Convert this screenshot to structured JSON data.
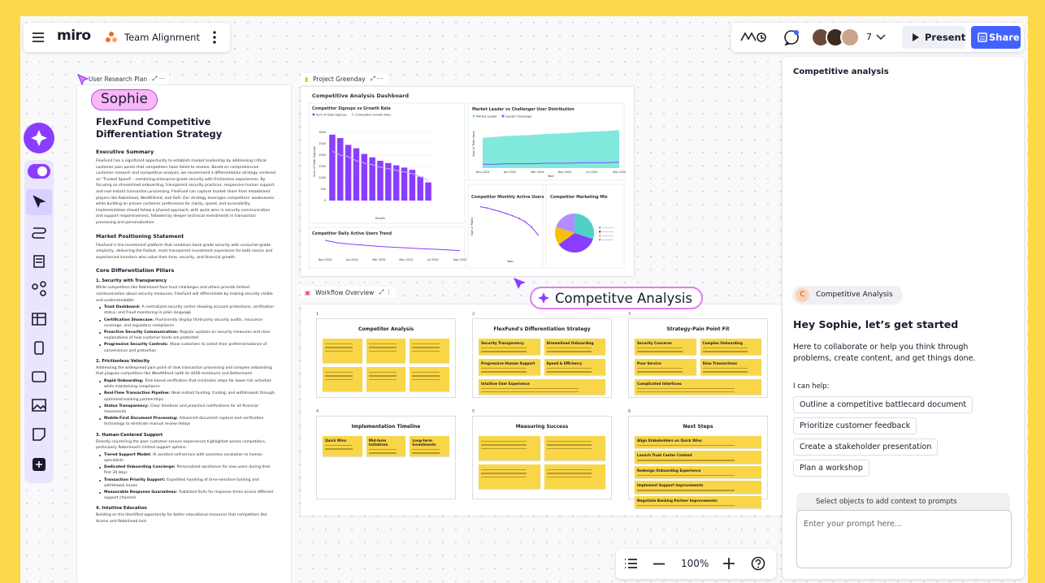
{
  "topbar": {
    "logo": "miro",
    "board_name": "Team Alignment",
    "collaborator_count": "7",
    "present": "Present",
    "share": "Share"
  },
  "canvas_labels": {
    "doc_tab": "User Research Plan",
    "cursor_sophie": "Sophie",
    "dashboard_tab": "Project Greenday",
    "workflow_tab": "Workflow Overview",
    "ai_tag": "Competitve Analysis"
  },
  "document": {
    "title": "FlexFund Competitive Differentiation Strategy",
    "blocks": [
      {
        "type": "h",
        "text": "Executive Summary"
      },
      {
        "type": "p",
        "text": "FlexFund has a significant opportunity to establish market leadership by addressing critical customer pain points that competitors have failed to resolve. Based on comprehensive customer research and competitive analysis, we recommend a differentiation strategy centered on \"Trusted Speed\" - combining enterprise-grade security with frictionless experiences. By focusing on streamlined onboarding, transparent security practices, responsive human support, and real-instant transaction processing, FlexFund can capture market share from established players like Robinhood, Wealthfront, and SoFi. Our strategy leverages competitors' weaknesses while building on proven customer preferences for clarity, speed, and accessibility. Implementation should follow a phased approach, with quick wins in security communication and support responsiveness, followed by deeper technical investments in transaction processing and personalization."
      },
      {
        "type": "h",
        "text": "Market Positioning Statement"
      },
      {
        "type": "p",
        "text": "FlexFund is the investment platform that combines bank-grade security with consumer-grade simplicity, delivering the fastest, most transparent investment experience for both novice and experienced investors who value their time, security, and financial growth."
      },
      {
        "type": "h",
        "text": "Core Differentiation Pillars"
      },
      {
        "type": "s",
        "text": "1. Security with Transparency"
      },
      {
        "type": "p",
        "text": "While competitors like Robinhood face trust challenges and others provide limited communication about security measures, FlexFund will differentiate by making security visible and understandable:"
      },
      {
        "type": "li",
        "lead": "Trust Dashboard:",
        "text": "A centralized security center showing account protections, verification status, and fraud monitoring in plain language"
      },
      {
        "type": "li",
        "lead": "Certification Showcase:",
        "text": "Prominently display third-party security audits, insurance coverage, and regulatory compliance"
      },
      {
        "type": "li",
        "lead": "Proactive Security Communication:",
        "text": "Regular updates on security measures and clear explanations of how customer funds are protected"
      },
      {
        "type": "li",
        "lead": "Progressive Security Controls:",
        "text": "Allow customers to select their preferred balance of convenience and protection"
      },
      {
        "type": "s",
        "text": "2. Frictionless Velocity"
      },
      {
        "type": "p",
        "text": "Addressing the widespread pain point of slow transaction processing and complex onboarding that plagues competitors like Wealthfront (with its $500 minimum) and Betterment:"
      },
      {
        "type": "li",
        "lead": "Rapid Onboarding:",
        "text": "Risk-based verification that minimizes steps for lower-risk activities while maintaining compliance"
      },
      {
        "type": "li",
        "lead": "Real-Time Transaction Pipeline:",
        "text": "Near-instant funding, trading, and withdrawals through optimized banking partnerships"
      },
      {
        "type": "li",
        "lead": "Status Transparency:",
        "text": "Clear timelines and proactive notifications for all financial movements"
      },
      {
        "type": "li",
        "lead": "Mobile-First Document Processing:",
        "text": "Advanced document capture and verification technology to eliminate manual review delays"
      },
      {
        "type": "s",
        "text": "3. Human-Centered Support"
      },
      {
        "type": "p",
        "text": "Directly countering the poor customer service experiences highlighted across competitors, particularly Robinhood's limited support options:"
      },
      {
        "type": "li",
        "lead": "Tiered Support Model:",
        "text": "AI assisted self-service with seamless escalation to human specialists"
      },
      {
        "type": "li",
        "lead": "Dedicated Onboarding Concierge:",
        "text": "Personalized assistance for new users during their first 30 days"
      },
      {
        "type": "li",
        "lead": "Transaction Priority Support:",
        "text": "Expedited handling of time-sensitive funding and withdrawal issues"
      },
      {
        "type": "li",
        "lead": "Measurable Response Guarantees:",
        "text": "Published SLAs for response times across different support channels"
      },
      {
        "type": "s",
        "text": "4. Intuitive Education"
      },
      {
        "type": "p",
        "text": "Building on the identified opportunity for better educational resources that competitors like Acorns and Robinhood lack"
      }
    ]
  },
  "dashboard": {
    "title": "Competitive Analysis Dashboard",
    "signups": {
      "type": "bar",
      "title": "Competitor Signups vs Growth Rate",
      "legend": [
        "Sum of Total Signups",
        "Competitor Growth Rate"
      ],
      "colors": [
        "#8b3dff",
        "#c9b3ff"
      ],
      "y_label": "Sum of Total Signups",
      "x_label": "Month",
      "values": [
        2900,
        2750,
        2450,
        2300,
        2050,
        1900,
        1750,
        1650,
        1550,
        1450,
        1350,
        1050,
        800
      ],
      "growth": [
        0.62,
        0.57,
        0.55,
        0.5,
        0.47,
        0.45,
        0.42,
        0.4,
        0.38,
        0.36,
        0.34,
        0.3,
        0.25
      ],
      "ylim": [
        0,
        3500
      ],
      "yticks": [
        0,
        500,
        1000,
        1500,
        2000,
        2500,
        3000
      ],
      "y2lim": [
        0,
        1
      ]
    },
    "distribution": {
      "type": "area",
      "title": "Market Leader vs Challenger User Distribution",
      "legend": [
        "Market Leader",
        "Leader Challenger"
      ],
      "colors": [
        "#62e3d3",
        "#7a4dff"
      ],
      "y_label": "Sum of Total Users",
      "x_label": "Year",
      "x_labels": [
        "Nov 2023",
        "Jan 2024",
        "Mar 2024",
        "May 2024",
        "Jul 2024",
        "Sep 2024"
      ],
      "leader": [
        62,
        64,
        66,
        67,
        68,
        70,
        71,
        72,
        74,
        75,
        76,
        78
      ],
      "challenger": [
        8,
        8,
        9,
        9,
        9,
        10,
        10,
        10,
        11,
        11,
        11,
        12
      ],
      "ylim": [
        0,
        100
      ]
    },
    "dau": {
      "type": "line",
      "title": "Competitor Daily Active Users Trend",
      "color": "#8b3dff",
      "x_labels": [
        "Nov 2023",
        "Jan 2024",
        "Mar 2024",
        "May 2024",
        "Jul 2024",
        "Sep 2024"
      ],
      "values": [
        85,
        70,
        62,
        56,
        50,
        45,
        41,
        37,
        33,
        30,
        26,
        22
      ],
      "ylim": [
        0,
        100
      ]
    },
    "mau": {
      "type": "line",
      "title": "Competitor Monthly Active Users",
      "color": "#8b3dff",
      "x_label": "Year",
      "y_label": "Sum of MAUs",
      "values": [
        95,
        92,
        88,
        84,
        79,
        74,
        68,
        60,
        48,
        30
      ],
      "ylim": [
        0,
        100
      ]
    },
    "mix": {
      "type": "pie",
      "title": "Competitor Marketing Mix",
      "values": [
        30,
        35,
        15,
        20
      ],
      "colors": [
        "#4fd1c5",
        "#8b3dff",
        "#f5c400",
        "#b48cff"
      ]
    }
  },
  "workflow": {
    "cards": [
      {
        "number": "1",
        "title": "Competitor Analysis",
        "stickies": []
      },
      {
        "number": "2",
        "title": "FlexFund's Differentiation Strategy",
        "stickies": [
          "Security Transparency",
          "Streamlined Onboarding",
          "Progressive Human Support",
          "Speed & Efficiency",
          "Intuitive User Experience"
        ]
      },
      {
        "number": "3",
        "title": "Strategy-Pain Point Fit",
        "stickies": [
          "Security Concerns",
          "Complex Onboarding",
          "Poor Service",
          "Slow Transactions",
          "Complicated Interfaces"
        ]
      },
      {
        "number": "4",
        "title": "Implementation Timeline",
        "stickies": [
          "Quick Wins",
          "Mid-term Initiatives",
          "Long-term Investments"
        ]
      },
      {
        "number": "5",
        "title": "Measuring Success",
        "stickies": []
      },
      {
        "number": "6",
        "title": "Next Steps",
        "stickies": [
          "Align Stakeholders on Quick Wins",
          "Launch Trust Center Content",
          "Redesign Onboarding Experience",
          "Implement Support Improvements",
          "Negotiate Banking Partner Improvements"
        ]
      }
    ]
  },
  "assistant": {
    "header": "Competitive analysis",
    "chip_initial": "C",
    "chip": "Competitive Analysis",
    "greeting": "Hey Sophie, let’s get started",
    "intro": "Here to collaborate or help you think through problems, create content, and get things done.",
    "help_label": "I can help:",
    "suggestions": [
      "Outline a competitive battlecard document",
      "Prioritize customer feedback",
      "Create a stakeholder presentation",
      "Plan a workshop"
    ],
    "context_hint": "Select objects to add context to prompts",
    "placeholder": "Enter your prompt here..."
  },
  "zoom": "100%"
}
